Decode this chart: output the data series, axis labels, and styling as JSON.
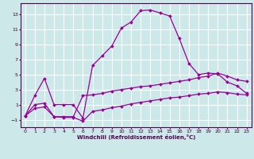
{
  "xlabel": "Windchill (Refroidissement éolien,°C)",
  "bg_color": "#cce8e8",
  "grid_color": "#ffffff",
  "line_color": "#990099",
  "spine_color": "#550055",
  "tick_color": "#330033",
  "x_ticks": [
    0,
    1,
    2,
    3,
    4,
    5,
    6,
    7,
    8,
    9,
    10,
    11,
    12,
    13,
    14,
    15,
    16,
    17,
    18,
    19,
    20,
    21,
    22,
    23
  ],
  "y_ticks": [
    -1,
    1,
    3,
    5,
    7,
    9,
    11,
    13
  ],
  "xlim": [
    -0.5,
    23.5
  ],
  "ylim": [
    -2.0,
    14.5
  ],
  "line1_x": [
    0,
    1,
    2,
    3,
    4,
    5,
    6,
    7,
    8,
    9,
    10,
    11,
    12,
    13,
    14,
    15,
    16,
    17,
    18,
    19,
    20,
    21,
    22,
    23
  ],
  "line1_y": [
    -0.5,
    2.2,
    4.5,
    1.0,
    1.0,
    1.0,
    -0.8,
    6.2,
    7.5,
    8.8,
    11.2,
    12.0,
    13.5,
    13.6,
    13.2,
    12.8,
    9.8,
    6.5,
    5.0,
    5.2,
    5.1,
    4.0,
    3.5,
    2.5
  ],
  "line2_x": [
    0,
    1,
    2,
    3,
    4,
    5,
    6,
    7,
    8,
    9,
    10,
    11,
    12,
    13,
    14,
    15,
    16,
    17,
    18,
    19,
    20,
    21,
    22,
    23
  ],
  "line2_y": [
    -0.5,
    1.0,
    1.2,
    -0.6,
    -0.6,
    -0.6,
    2.2,
    2.3,
    2.5,
    2.8,
    3.0,
    3.2,
    3.4,
    3.5,
    3.7,
    3.9,
    4.1,
    4.3,
    4.6,
    4.8,
    5.2,
    4.8,
    4.3,
    4.1
  ],
  "line3_x": [
    0,
    1,
    2,
    3,
    4,
    5,
    6,
    7,
    8,
    9,
    10,
    11,
    12,
    13,
    14,
    15,
    16,
    17,
    18,
    19,
    20,
    21,
    22,
    23
  ],
  "line3_y": [
    -0.5,
    0.5,
    0.7,
    -0.6,
    -0.7,
    -0.7,
    -1.2,
    0.1,
    0.3,
    0.6,
    0.8,
    1.1,
    1.3,
    1.5,
    1.7,
    1.9,
    2.0,
    2.2,
    2.4,
    2.5,
    2.7,
    2.6,
    2.4,
    2.3
  ]
}
